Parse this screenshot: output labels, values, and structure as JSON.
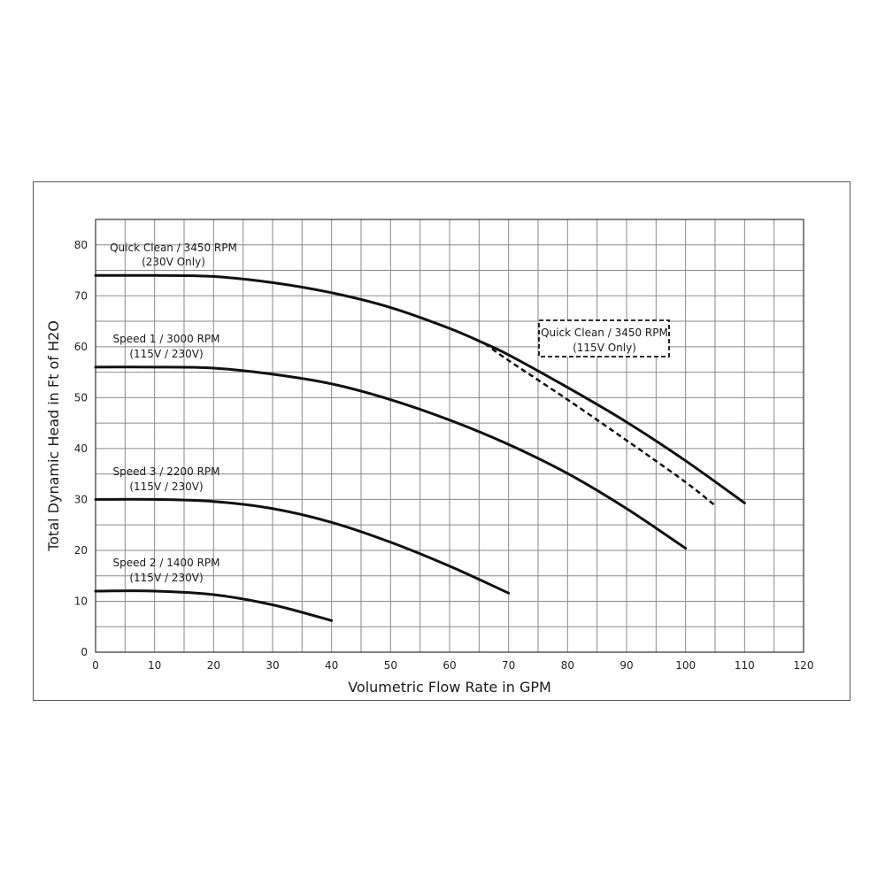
{
  "chart_data": {
    "type": "line",
    "xlabel": "Volumetric Flow Rate in GPM",
    "ylabel": "Total Dynamic Head in Ft of H2O",
    "xlim": [
      0,
      120
    ],
    "ylim": [
      0,
      85
    ],
    "x_ticks": [
      0,
      10,
      20,
      30,
      40,
      50,
      60,
      70,
      80,
      90,
      100,
      110,
      120
    ],
    "y_ticks": [
      0,
      10,
      20,
      30,
      40,
      50,
      60,
      70,
      80
    ],
    "grid": true,
    "series": [
      {
        "name": "Quick Clean / 3450 RPM (230V Only)",
        "label_lines": [
          "Quick Clean / 3450 RPM",
          "(230V Only)"
        ],
        "style": "solid",
        "x": [
          0,
          10,
          20,
          30,
          40,
          50,
          60,
          66,
          70,
          80,
          90,
          100,
          110
        ],
        "y": [
          74,
          74,
          73.8,
          72.6,
          70.6,
          67.7,
          63.6,
          60.6,
          58.4,
          52,
          45.2,
          37.6,
          29.3
        ]
      },
      {
        "name": "Quick Clean / 3450 RPM (115V Only)",
        "label_lines": [
          "Quick Clean / 3450 RPM",
          "(115V Only)"
        ],
        "style": "dashed",
        "x": [
          66,
          70,
          80,
          90,
          100,
          105
        ],
        "y": [
          60.6,
          57.3,
          49.6,
          41.6,
          33.4,
          28.8
        ]
      },
      {
        "name": "Speed 1 / 3000 RPM (115V / 230V)",
        "label_lines": [
          "Speed 1 / 3000 RPM",
          "(115V / 230V)"
        ],
        "style": "solid",
        "x": [
          0,
          10,
          20,
          30,
          40,
          50,
          60,
          70,
          80,
          90,
          100
        ],
        "y": [
          56,
          56,
          55.8,
          54.6,
          52.7,
          49.6,
          45.6,
          40.8,
          35.1,
          28.2,
          20.4
        ]
      },
      {
        "name": "Speed 3 / 2200 RPM (115V / 230V)",
        "label_lines": [
          "Speed 3 / 2200 RPM",
          "(115V / 230V)"
        ],
        "style": "solid",
        "x": [
          0,
          10,
          20,
          30,
          40,
          50,
          60,
          70
        ],
        "y": [
          30,
          30,
          29.6,
          28.2,
          25.5,
          21.6,
          16.9,
          11.6
        ]
      },
      {
        "name": "Speed 2 / 1400 RPM (115V / 230V)",
        "label_lines": [
          "Speed 2 / 1400 RPM",
          "(115V / 230V)"
        ],
        "style": "solid",
        "x": [
          0,
          10,
          20,
          30,
          40
        ],
        "y": [
          12,
          12,
          11.3,
          9.3,
          6.2
        ]
      }
    ]
  }
}
